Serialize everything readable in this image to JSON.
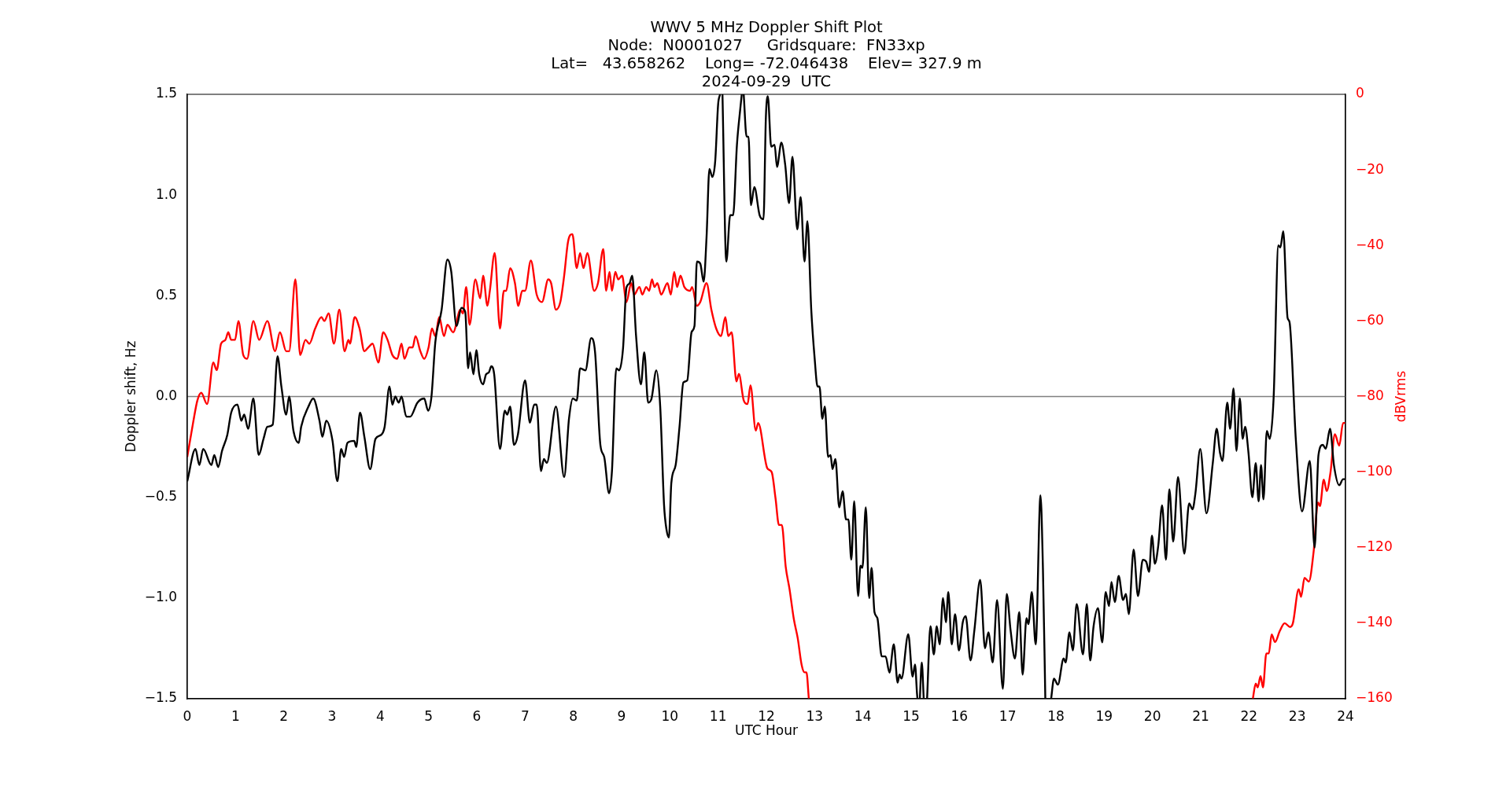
{
  "chart_data": {
    "type": "line",
    "title": "WWV 5 MHz Doppler Shift Plot",
    "subtitle": "Node:  N0001027     Gridsquare:  FN33xp\nLat=   43.658262    Long= -72.046438    Elev= 327.9 m\n2024-09-29  UTC",
    "xlabel": "UTC Hour",
    "ylabel": "Doppler shift, Hz",
    "y2label": "dBVrms",
    "xlim": [
      0,
      24
    ],
    "xticks": [
      0,
      1,
      2,
      3,
      4,
      5,
      6,
      7,
      8,
      9,
      10,
      11,
      12,
      13,
      14,
      15,
      16,
      17,
      18,
      19,
      20,
      21,
      22,
      23,
      24
    ],
    "ylim": [
      -1.5,
      1.5
    ],
    "yticks": [
      {
        "value": -1.5,
        "label": "−1.5"
      },
      {
        "value": -1,
        "label": "−1.0"
      },
      {
        "value": -0.5,
        "label": "−0.5"
      },
      {
        "value": 0,
        "label": "0.0"
      },
      {
        "value": 0.5,
        "label": "0.5"
      },
      {
        "value": 1,
        "label": "1.0"
      },
      {
        "value": 1.5,
        "label": "1.5"
      }
    ],
    "y2lim": [
      -160,
      0
    ],
    "y2ticks": [
      {
        "value": -160,
        "label": "−160"
      },
      {
        "value": -140,
        "label": "−140"
      },
      {
        "value": -120,
        "label": "−120"
      },
      {
        "value": -100,
        "label": "−100"
      },
      {
        "value": -80,
        "label": "−80"
      },
      {
        "value": -60,
        "label": "−60"
      },
      {
        "value": -40,
        "label": "−40"
      },
      {
        "value": -20,
        "label": "−20"
      },
      0
    ],
    "ref_lines": [
      {
        "axis": "y",
        "value": 0,
        "color": "#808080"
      }
    ],
    "grid": false,
    "legend": false,
    "marker": "none",
    "line_style": "solid",
    "series": [
      {
        "color": "#000000",
        "axis": "y",
        "x": [
          0,
          0.17,
          0.25,
          0.33,
          0.5,
          0.56,
          0.64,
          0.72,
          0.83,
          0.91,
          1.04,
          1.12,
          1.18,
          1.26,
          1.37,
          1.48,
          1.58,
          1.66,
          1.77,
          1.87,
          1.95,
          2.05,
          2.11,
          2.2,
          2.31,
          2.36,
          2.51,
          2.61,
          2.74,
          2.8,
          2.88,
          3.01,
          3.11,
          3.19,
          3.25,
          3.32,
          3.46,
          3.5,
          3.58,
          3.67,
          3.79,
          3.9,
          4.02,
          4.09,
          4.19,
          4.25,
          4.31,
          4.38,
          4.44,
          4.54,
          4.62,
          4.77,
          4.91,
          4.99,
          5.06,
          5.14,
          5.27,
          5.39,
          5.47,
          5.58,
          5.68,
          5.76,
          5.82,
          5.86,
          5.93,
          5.99,
          6.05,
          6.13,
          6.19,
          6.25,
          6.3,
          6.36,
          6.48,
          6.58,
          6.63,
          6.69,
          6.77,
          6.85,
          7.0,
          7.1,
          7.19,
          7.24,
          7.33,
          7.39,
          7.45,
          7.64,
          7.81,
          7.91,
          7.99,
          8.07,
          8.14,
          8.25,
          8.37,
          8.45,
          8.56,
          8.64,
          8.74,
          8.8,
          8.89,
          8.95,
          9.03,
          9.1,
          9.16,
          9.22,
          9.3,
          9.4,
          9.47,
          9.55,
          9.62,
          9.72,
          9.8,
          9.88,
          9.93,
          9.98,
          10.03,
          10.12,
          10.2,
          10.28,
          10.36,
          10.45,
          10.51,
          10.56,
          10.63,
          10.7,
          10.76,
          10.82,
          10.88,
          10.94,
          11.0,
          11.04,
          11.07,
          11.09,
          11.17,
          11.25,
          11.31,
          11.39,
          11.46,
          11.49,
          11.51,
          11.53,
          11.59,
          11.63,
          11.68,
          11.75,
          11.86,
          11.94,
          11.99,
          12.03,
          12.1,
          12.17,
          12.22,
          12.31,
          12.39,
          12.47,
          12.54,
          12.64,
          12.71,
          12.79,
          12.85,
          12.93,
          13.0,
          13.06,
          13.1,
          13.16,
          13.21,
          13.28,
          13.33,
          13.37,
          13.43,
          13.51,
          13.58,
          13.65,
          13.7,
          13.76,
          13.82,
          13.9,
          13.95,
          13.99,
          14.06,
          14.13,
          14.18,
          14.24,
          14.3,
          14.39,
          14.47,
          14.55,
          14.64,
          14.72,
          14.76,
          14.8,
          14.94,
          15.03,
          15.08,
          15.12,
          15.13,
          15.15,
          15.18,
          15.22,
          15.26,
          15.29,
          15.33,
          15.4,
          15.47,
          15.53,
          15.59,
          15.66,
          15.72,
          15.77,
          15.84,
          15.91,
          15.99,
          16.07,
          16.13,
          16.23,
          16.31,
          16.43,
          16.53,
          16.6,
          16.69,
          16.78,
          16.9,
          16.98,
          17.06,
          17.15,
          17.24,
          17.31,
          17.39,
          17.43,
          17.5,
          17.58,
          17.68,
          17.73,
          17.78,
          17.83,
          17.9,
          17.96,
          18.04,
          18.16,
          18.2,
          18.28,
          18.35,
          18.43,
          18.56,
          18.64,
          18.71,
          18.78,
          18.87,
          18.96,
          19.03,
          19.1,
          19.15,
          19.22,
          19.3,
          19.39,
          19.45,
          19.51,
          19.61,
          19.7,
          19.8,
          19.87,
          19.93,
          19.99,
          20.05,
          20.12,
          20.2,
          20.28,
          20.35,
          20.43,
          20.53,
          20.66,
          20.76,
          20.83,
          20.89,
          20.99,
          21.12,
          21.25,
          21.33,
          21.4,
          21.45,
          21.55,
          21.61,
          21.68,
          21.74,
          21.81,
          21.87,
          21.92,
          21.99,
          22.07,
          22.14,
          22.2,
          22.25,
          22.3,
          22.37,
          22.43,
          22.51,
          22.61,
          22.65,
          22.71,
          22.8,
          22.84,
          22.97,
          23.1,
          23.26,
          23.36,
          23.44,
          23.53,
          23.59,
          23.68,
          23.76,
          23.87,
          23.95,
          24
        ],
        "values": [
          -0.42,
          -0.26,
          -0.34,
          -0.26,
          -0.34,
          -0.29,
          -0.35,
          -0.27,
          -0.19,
          -0.08,
          -0.04,
          -0.12,
          -0.09,
          -0.16,
          -0.01,
          -0.29,
          -0.21,
          -0.15,
          -0.14,
          0.2,
          0.05,
          -0.09,
          0,
          -0.17,
          -0.23,
          -0.15,
          -0.05,
          -0.01,
          -0.12,
          -0.2,
          -0.12,
          -0.22,
          -0.42,
          -0.26,
          -0.3,
          -0.23,
          -0.22,
          -0.25,
          -0.08,
          -0.2,
          -0.36,
          -0.21,
          -0.19,
          -0.15,
          0.05,
          -0.04,
          0,
          -0.03,
          0,
          -0.1,
          -0.1,
          -0.03,
          -0.01,
          -0.07,
          0,
          0.27,
          0.43,
          0.68,
          0.62,
          0.35,
          0.44,
          0.42,
          0.14,
          0.22,
          0.11,
          0.23,
          0.11,
          0.06,
          0.11,
          0.12,
          0.15,
          0.11,
          -0.26,
          -0.07,
          -0.09,
          -0.05,
          -0.24,
          -0.19,
          0.08,
          -0.13,
          -0.04,
          -0.04,
          -0.37,
          -0.31,
          -0.33,
          -0.05,
          -0.4,
          -0.11,
          -0.01,
          -0.02,
          0.14,
          0.13,
          0.29,
          0.22,
          -0.24,
          -0.3,
          -0.48,
          -0.37,
          0.14,
          0.13,
          0.24,
          0.54,
          0.56,
          0.6,
          0.3,
          0.06,
          0.22,
          -0.03,
          -0.01,
          0.13,
          -0.05,
          -0.54,
          -0.66,
          -0.7,
          -0.43,
          -0.34,
          -0.15,
          0.07,
          0.08,
          0.32,
          0.35,
          0.67,
          0.66,
          0.57,
          0.79,
          1.13,
          1.09,
          1.17,
          1.45,
          1.5,
          null,
          1.5,
          0.67,
          0.9,
          0.9,
          1.25,
          1.43,
          1.5,
          null,
          1.5,
          1.29,
          1.29,
          0.95,
          1.04,
          0.9,
          0.88,
          1.39,
          1.49,
          1.24,
          1.25,
          1.14,
          1.26,
          1.15,
          0.96,
          1.19,
          0.83,
          0.99,
          0.67,
          0.87,
          0.43,
          0.19,
          0.05,
          0.05,
          -0.11,
          -0.05,
          -0.3,
          -0.29,
          -0.36,
          -0.31,
          -0.55,
          -0.47,
          -0.61,
          -0.61,
          -0.81,
          -0.52,
          -0.99,
          -0.84,
          -0.85,
          -0.55,
          -1.0,
          -0.85,
          -1.07,
          -1.1,
          -1.29,
          -1.29,
          -1.37,
          -1.23,
          -1.42,
          -1.38,
          -1.4,
          -1.18,
          -1.39,
          -1.33,
          -1.47,
          -1.5,
          null,
          -1.5,
          -1.32,
          -1.5,
          null,
          -1.5,
          -1.14,
          -1.28,
          -1.14,
          -1.23,
          -1,
          -1.12,
          -0.97,
          -1.23,
          -1.08,
          -1.26,
          -1.12,
          -1.09,
          -1.31,
          -1.16,
          -0.91,
          -1.25,
          -1.17,
          -1.32,
          -1.01,
          -1.45,
          -0.98,
          -1.16,
          -1.3,
          -1.07,
          -1.38,
          -1.1,
          -1.13,
          -0.97,
          -1.23,
          -0.49,
          -0.85,
          -1.5,
          null,
          -1.5,
          -1.4,
          -1.43,
          -1.3,
          -1.32,
          -1.17,
          -1.26,
          -1.03,
          -1.28,
          -1.03,
          -1.31,
          -1.14,
          -1.05,
          -1.22,
          -0.97,
          -1.04,
          -0.92,
          -1.02,
          -0.89,
          -1.01,
          -0.98,
          -1.08,
          -0.76,
          -0.99,
          -0.81,
          -0.82,
          -0.87,
          -0.69,
          -0.83,
          -0.74,
          -0.54,
          -0.81,
          -0.46,
          -0.72,
          -0.4,
          -0.78,
          -0.53,
          -0.56,
          -0.48,
          -0.26,
          -0.58,
          -0.33,
          -0.16,
          -0.28,
          -0.32,
          -0.03,
          -0.16,
          0.04,
          -0.27,
          -0.01,
          -0.21,
          -0.15,
          -0.28,
          -0.5,
          -0.33,
          -0.52,
          -0.34,
          -0.51,
          -0.17,
          -0.21,
          -0.01,
          0.75,
          0.74,
          0.82,
          0.39,
          0.37,
          -0.21,
          -0.57,
          -0.32,
          -0.75,
          -0.29,
          -0.24,
          -0.26,
          -0.16,
          -0.34,
          -0.44,
          -0.41,
          -0.41
        ]
      },
      {
        "color": "#ff0000",
        "axis": "y2",
        "x": [
          0,
          0.12,
          0.21,
          0.29,
          0.41,
          0.54,
          0.61,
          0.7,
          0.79,
          0.85,
          0.91,
          0.99,
          1.06,
          1.16,
          1.24,
          1.37,
          1.49,
          1.66,
          1.82,
          1.92,
          2.05,
          2.11,
          2.24,
          2.34,
          2.45,
          2.53,
          2.65,
          2.78,
          2.84,
          2.93,
          3.04,
          3.15,
          3.26,
          3.34,
          3.37,
          3.47,
          3.57,
          3.67,
          3.75,
          3.84,
          3.96,
          4.06,
          4.15,
          4.25,
          4.35,
          4.44,
          4.5,
          4.6,
          4.67,
          4.73,
          4.83,
          4.91,
          5.0,
          5.07,
          5.14,
          5.22,
          5.32,
          5.39,
          5.51,
          5.66,
          5.71,
          5.78,
          5.85,
          5.97,
          6.07,
          6.13,
          6.22,
          6.27,
          6.37,
          6.48,
          6.56,
          6.61,
          6.69,
          6.79,
          6.86,
          6.94,
          7.0,
          7.12,
          7.24,
          7.35,
          7.48,
          7.54,
          7.64,
          7.73,
          7.81,
          7.89,
          7.98,
          8.07,
          8.14,
          8.21,
          8.29,
          8.43,
          8.51,
          8.62,
          8.68,
          8.75,
          8.8,
          8.87,
          8.93,
          9.01,
          9.1,
          9.2,
          9.26,
          9.37,
          9.43,
          9.51,
          9.57,
          9.63,
          9.68,
          9.74,
          9.82,
          9.95,
          10.02,
          10.09,
          10.15,
          10.22,
          10.3,
          10.42,
          10.46,
          10.56,
          10.63,
          10.76,
          10.86,
          10.96,
          11.06,
          11.15,
          11.21,
          11.28,
          11.38,
          11.43,
          11.53,
          11.61,
          11.67,
          11.78,
          11.83,
          12.02,
          12.11,
          12.19,
          12.26,
          12.32,
          12.4,
          12.48,
          12.57,
          12.65,
          12.73,
          12.79,
          12.83,
          12.88,
          17.5,
          22.08,
          22.14,
          22.18,
          22.24,
          22.29,
          22.36,
          22.41,
          22.47,
          22.54,
          22.64,
          22.74,
          22.85,
          22.91,
          23.03,
          23.08,
          23.15,
          23.24,
          23.34,
          23.43,
          23.47,
          23.55,
          23.61,
          23.69,
          23.78,
          23.87,
          23.95,
          24
        ],
        "values": [
          -96,
          -87,
          -81,
          -79,
          -82,
          -71,
          -73,
          -66,
          -65,
          -63,
          -65,
          -65,
          -60,
          -69,
          -70,
          -60,
          -65,
          -60,
          -68,
          -63,
          -68,
          -68,
          -49,
          -69,
          -65,
          -66,
          -62,
          -59,
          -60,
          -58,
          -66,
          -57,
          -68,
          -65,
          -66,
          -59,
          -62,
          -68,
          -67,
          -66,
          -71,
          -63,
          -65,
          -69,
          -70,
          -66,
          -70,
          -67,
          -67,
          -64,
          -68,
          -70,
          -67,
          -62,
          -64,
          -59,
          -64,
          -61,
          -63,
          -57,
          -58,
          -51,
          -61,
          -49,
          -54,
          -48,
          -56,
          -52,
          -42,
          -62,
          -52,
          -52,
          -46,
          -50,
          -56,
          -52,
          -52,
          -44,
          -53,
          -55,
          -49,
          -50,
          -57,
          -55,
          -48,
          -39,
          -37,
          -46,
          -42,
          -46,
          -42,
          -52,
          -50,
          -41,
          -52,
          -47,
          -52,
          -47,
          -49,
          -48,
          -55,
          -50,
          -53,
          -51,
          -53,
          -51,
          -52,
          -49,
          -51,
          -50,
          -53,
          -50,
          -53,
          -47,
          -51,
          -48,
          -51,
          -52,
          -51,
          -56,
          -55,
          -50,
          -57,
          -62,
          -64,
          -59,
          -64,
          -63,
          -76,
          -74,
          -81,
          -82,
          -77,
          -89,
          -87,
          -99,
          -100,
          -107,
          -114,
          -114,
          -125,
          -131,
          -139,
          -144,
          -151,
          -153,
          -153,
          -160,
          null,
          -160,
          -156,
          -157,
          -154,
          -157,
          -148,
          -148,
          -143,
          -145,
          -142,
          -140,
          -141,
          -140,
          -131,
          -133,
          -128,
          -129,
          -121,
          -108,
          -109,
          -102,
          -105,
          -100,
          -90,
          -93,
          -87,
          -87
        ]
      }
    ]
  }
}
